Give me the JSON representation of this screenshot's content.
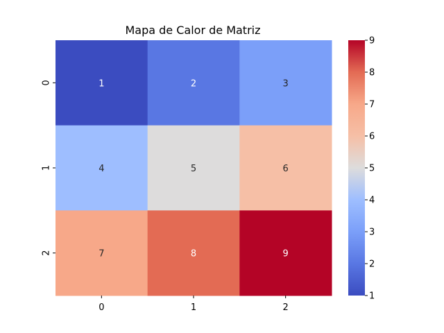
{
  "chart_data": {
    "type": "heatmap",
    "title": "Mapa de Calor de Matriz",
    "xlabel": "",
    "ylabel": "",
    "x_tick_labels": [
      "0",
      "1",
      "2"
    ],
    "y_tick_labels": [
      "0",
      "1",
      "2"
    ],
    "values": [
      [
        1,
        2,
        3
      ],
      [
        4,
        5,
        6
      ],
      [
        7,
        8,
        9
      ]
    ],
    "cell_labels": [
      [
        "1",
        "2",
        "3"
      ],
      [
        "4",
        "5",
        "6"
      ],
      [
        "7",
        "8",
        "9"
      ]
    ],
    "colormap": "coolwarm",
    "vmin": 1,
    "vmax": 9,
    "colorbar_ticks": [
      1,
      2,
      3,
      4,
      5,
      6,
      7,
      8,
      9
    ],
    "colorbar_tick_labels": [
      "1",
      "2",
      "3",
      "4",
      "5",
      "6",
      "7",
      "8",
      "9"
    ],
    "colorbar_position": "right",
    "annotation_text_colors": [
      "#ffffff",
      "#262626"
    ],
    "grid": false
  }
}
